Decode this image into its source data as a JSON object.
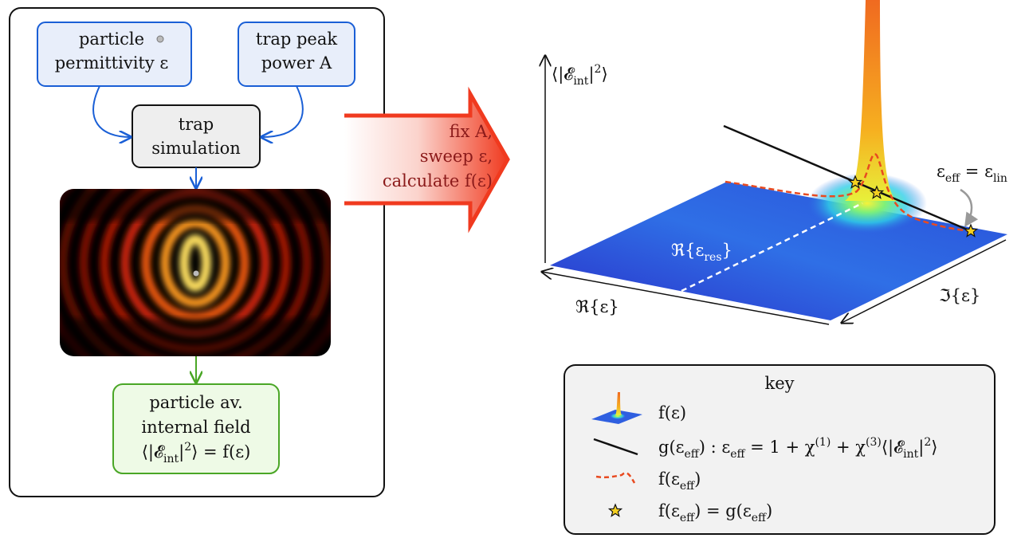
{
  "nodes": [
    {
      "lines": [
        [
          "particle"
        ],
        [
          "permittivity ε"
        ]
      ]
    },
    {
      "lines": [
        [
          "trap peak"
        ],
        [
          "power A"
        ]
      ]
    },
    {
      "lines": [
        [
          "trap"
        ],
        [
          "simulation"
        ]
      ]
    },
    {
      "lines": [
        [
          "particle av."
        ],
        [
          "internal field"
        ],
        [
          "⟨|𝓔",
          {
            "sub": "int"
          },
          "|",
          {
            "sup": "2"
          },
          "⟩ = f(ε)"
        ]
      ]
    }
  ],
  "arrow_label": {
    "lines": [
      [
        "fix A,"
      ],
      [
        "sweep ε,"
      ],
      [
        "calculate f(ε)"
      ]
    ]
  },
  "plot": {
    "y_axis_label": [
      "⟨|𝓔",
      {
        "sub": "int"
      },
      "|",
      {
        "sup": "2"
      },
      "⟩"
    ],
    "re_axis_label": [
      "ℜ{ε}"
    ],
    "im_axis_label": [
      "ℑ{ε}"
    ],
    "resonance_label": [
      "ℜ{ε",
      {
        "sub": "res"
      },
      "}"
    ],
    "lin_label": [
      "ε",
      {
        "sub": "eff"
      },
      " = ε",
      {
        "sub": "lin"
      }
    ]
  },
  "key": {
    "title": "key",
    "entries": [
      [
        "f(ε)"
      ],
      [
        "g(ε",
        {
          "sub": "eff"
        },
        ") :  ε",
        {
          "sub": "eff"
        },
        " = 1 + χ",
        {
          "sup": "(1)"
        },
        " + χ",
        {
          "sup": "(3)"
        },
        "⟨|𝓔",
        {
          "sub": "int"
        },
        "|",
        {
          "sup": "2"
        },
        "⟩"
      ],
      [
        "f(ε",
        {
          "sub": "eff"
        },
        ")"
      ],
      [
        "f(ε",
        {
          "sub": "eff"
        },
        ") = g(ε",
        {
          "sub": "eff"
        },
        ")"
      ]
    ]
  }
}
